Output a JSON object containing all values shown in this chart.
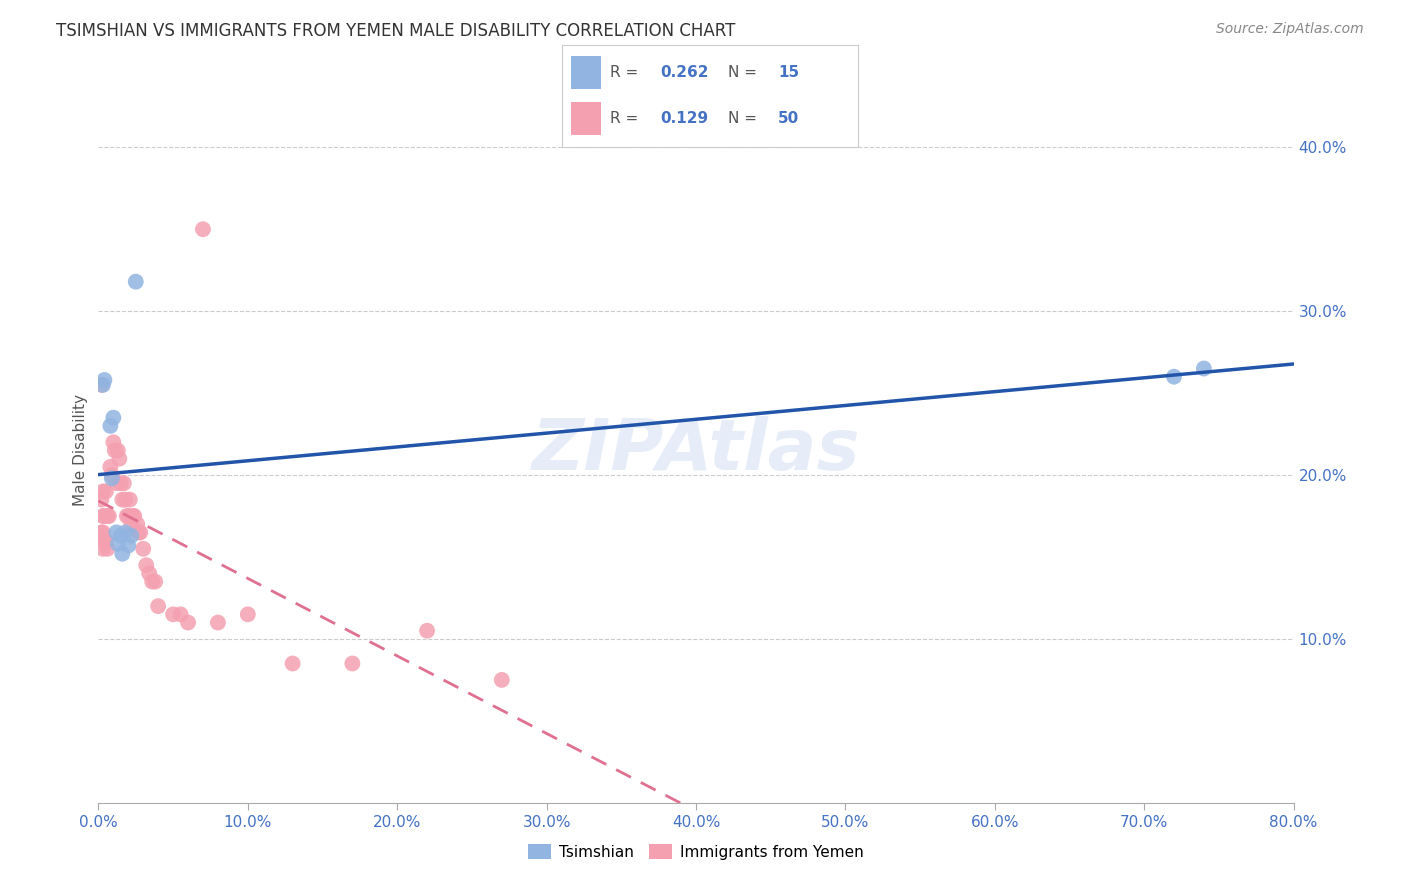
{
  "title": "TSIMSHIAN VS IMMIGRANTS FROM YEMEN MALE DISABILITY CORRELATION CHART",
  "source": "Source: ZipAtlas.com",
  "ylabel": "Male Disability",
  "xlabel": "",
  "xlim": [
    0.0,
    0.8
  ],
  "ylim": [
    0.0,
    0.43
  ],
  "xticks": [
    0.0,
    0.1,
    0.2,
    0.3,
    0.4,
    0.5,
    0.6,
    0.7,
    0.8
  ],
  "xticklabels": [
    "0.0%",
    "10.0%",
    "20.0%",
    "30.0%",
    "40.0%",
    "50.0%",
    "60.0%",
    "70.0%",
    "80.0%"
  ],
  "yticks": [
    0.1,
    0.2,
    0.3,
    0.4
  ],
  "yticklabels": [
    "10.0%",
    "20.0%",
    "30.0%",
    "40.0%"
  ],
  "tsimshian_color": "#91b4e0",
  "yemen_color": "#f4a0b0",
  "tsimshian_R": 0.262,
  "tsimshian_N": 15,
  "yemen_R": 0.129,
  "yemen_N": 50,
  "tsimshian_line_color": "#2255aa",
  "yemen_line_color": "#e07090",
  "watermark": "ZIPAtlas",
  "tsimshian_x": [
    0.003,
    0.004,
    0.008,
    0.009,
    0.01,
    0.012,
    0.013,
    0.015,
    0.016,
    0.018,
    0.02,
    0.022,
    0.025,
    0.72,
    0.74
  ],
  "tsimshian_y": [
    0.255,
    0.258,
    0.23,
    0.198,
    0.235,
    0.165,
    0.158,
    0.163,
    0.152,
    0.165,
    0.157,
    0.163,
    0.318,
    0.26,
    0.265
  ],
  "yemen_x": [
    0.002,
    0.002,
    0.002,
    0.003,
    0.003,
    0.003,
    0.003,
    0.004,
    0.004,
    0.005,
    0.005,
    0.006,
    0.006,
    0.007,
    0.008,
    0.009,
    0.01,
    0.011,
    0.012,
    0.013,
    0.014,
    0.015,
    0.016,
    0.017,
    0.018,
    0.019,
    0.02,
    0.021,
    0.022,
    0.023,
    0.024,
    0.026,
    0.027,
    0.028,
    0.03,
    0.032,
    0.034,
    0.036,
    0.038,
    0.04,
    0.05,
    0.055,
    0.06,
    0.07,
    0.08,
    0.1,
    0.13,
    0.17,
    0.22,
    0.27
  ],
  "yemen_y": [
    0.255,
    0.185,
    0.165,
    0.19,
    0.175,
    0.165,
    0.155,
    0.175,
    0.16,
    0.19,
    0.16,
    0.175,
    0.155,
    0.175,
    0.205,
    0.2,
    0.22,
    0.215,
    0.195,
    0.215,
    0.21,
    0.195,
    0.185,
    0.195,
    0.185,
    0.175,
    0.175,
    0.185,
    0.17,
    0.175,
    0.175,
    0.17,
    0.165,
    0.165,
    0.155,
    0.145,
    0.14,
    0.135,
    0.135,
    0.12,
    0.115,
    0.115,
    0.11,
    0.35,
    0.11,
    0.115,
    0.085,
    0.085,
    0.105,
    0.075
  ],
  "legend_R1": "0.262",
  "legend_N1": "15",
  "legend_R2": "0.129",
  "legend_N2": "50",
  "legend_label1": "Tsimshian",
  "legend_label2": "Immigrants from Yemen"
}
